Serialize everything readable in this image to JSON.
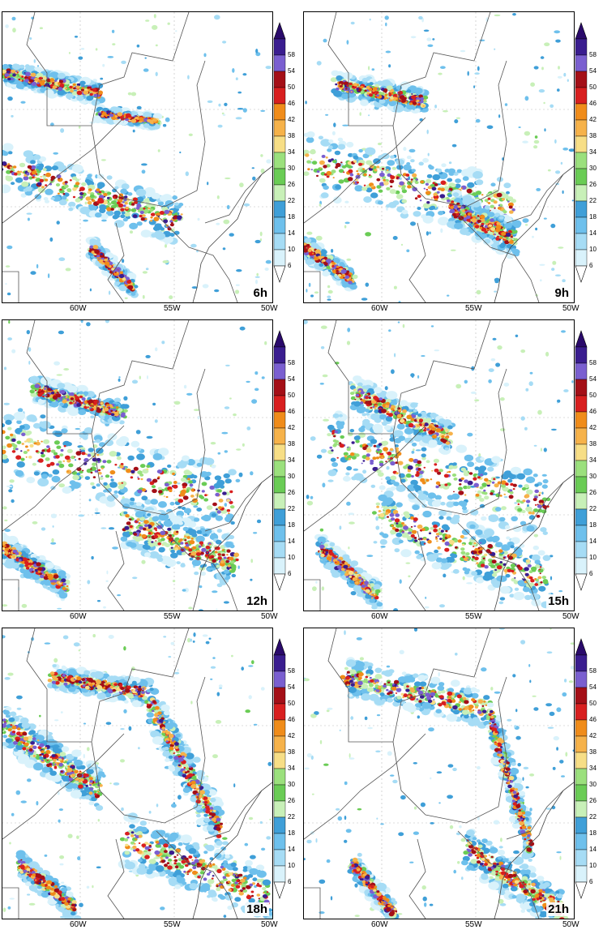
{
  "colorbar": {
    "levels": [
      "58",
      "54",
      "50",
      "46",
      "42",
      "38",
      "34",
      "30",
      "26",
      "22",
      "18",
      "14",
      "10",
      "6"
    ],
    "colors": [
      "#3a1d8f",
      "#7a5fd0",
      "#a40f17",
      "#d81f1f",
      "#f08c1a",
      "#f6b24a",
      "#f7de86",
      "#9be07d",
      "#6acc55",
      "#c8f0b8",
      "#3f9fd8",
      "#6ec0ec",
      "#a6dcf5",
      "#d9f2fb"
    ],
    "top_color": "#2a0a6b"
  },
  "longitude_labels": [
    "60W",
    "55W",
    "50W"
  ],
  "panels": [
    {
      "label": "6h"
    },
    {
      "label": "9h"
    },
    {
      "label": "12h"
    },
    {
      "label": "15h"
    },
    {
      "label": "18h"
    },
    {
      "label": "21h"
    }
  ]
}
